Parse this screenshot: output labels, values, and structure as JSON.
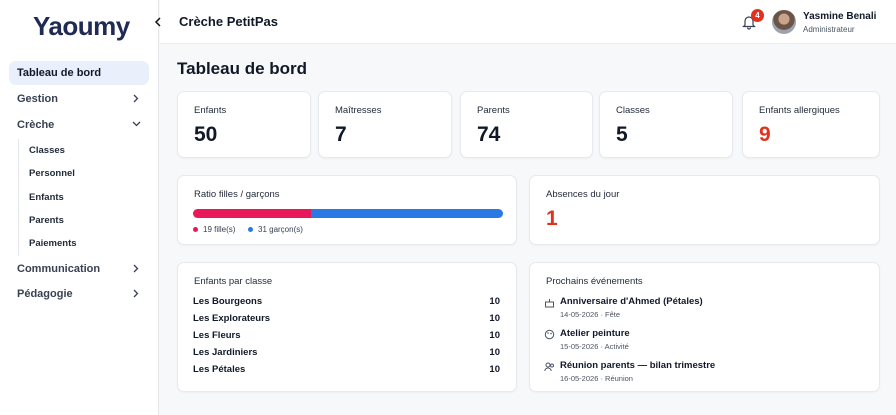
{
  "sidebar": {
    "logo": "Yaoumy",
    "nav": [
      {
        "label": "Tableau de bord",
        "active": true
      },
      {
        "label": "Gestion",
        "chevron": "right"
      },
      {
        "label": "Crèche",
        "chevron": "down",
        "children": [
          "Classes",
          "Personnel",
          "Enfants",
          "Parents",
          "Paiements"
        ]
      },
      {
        "label": "Communication",
        "chevron": "right"
      },
      {
        "label": "Pédagogie",
        "chevron": "right"
      }
    ]
  },
  "header": {
    "title": "Crèche PetitPas",
    "notifications": 4,
    "user": {
      "name": "Yasmine Benali",
      "role": "Administrateur"
    }
  },
  "page_title": "Tableau de bord",
  "stats": [
    {
      "label": "Enfants",
      "value": 50
    },
    {
      "label": "Maîtresses",
      "value": 7
    },
    {
      "label": "Parents",
      "value": 74
    },
    {
      "label": "Classes",
      "value": 5
    },
    {
      "label": "Enfants allergiques",
      "value": 9,
      "color": "#e0321f"
    }
  ],
  "ratio": {
    "title": "Ratio filles / garçons",
    "series": [
      {
        "value": 19,
        "label": "19 fille(s)",
        "color": "#e8185a"
      },
      {
        "value": 31,
        "label": "31 garçon(s)",
        "color": "#2a78e4"
      }
    ]
  },
  "absences": {
    "title": "Absences du jour",
    "value": 1,
    "color": "#e0321f"
  },
  "classes": {
    "title": "Enfants par classe",
    "rows": [
      [
        "Les Bourgeons",
        10
      ],
      [
        "Les Explorateurs",
        10
      ],
      [
        "Les Fleurs",
        10
      ],
      [
        "Les Jardiniers",
        10
      ],
      [
        "Les Pétales",
        10
      ]
    ]
  },
  "events": {
    "title": "Prochains événements",
    "items": [
      {
        "name": "Anniversaire d'Ahmed (Pétales)",
        "meta": "14-05-2026 · Fête"
      },
      {
        "name": "Atelier peinture",
        "meta": "15-05-2026 · Activité"
      },
      {
        "name": "Réunion parents — bilan trimestre",
        "meta": "16-05-2026 · Réunion"
      }
    ]
  }
}
